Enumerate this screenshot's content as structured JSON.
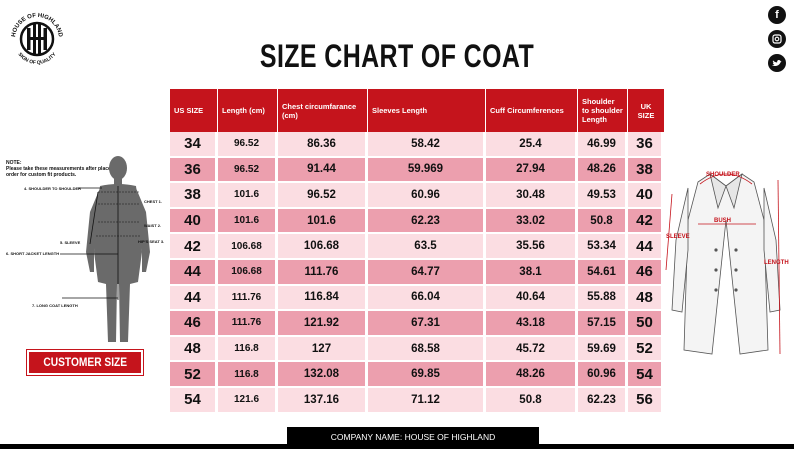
{
  "brand": {
    "logo_top_text": "HOUSE OF HIGHLAND",
    "logo_bottom_text": "SIGN OF QUALITY"
  },
  "social": {
    "icons": [
      "facebook-icon",
      "instagram-icon",
      "twitter-icon"
    ]
  },
  "title": "SIZE CHART OF  COAT",
  "table": {
    "headers": [
      "US SIZE",
      "Length (cm)",
      "Chest circumfarance (cm)",
      "Sleeves Length",
      "Cuff Circumferences",
      "Shoulder to shoulder Length",
      "UK SIZE"
    ],
    "rows": [
      [
        "34",
        "96.52",
        "86.36",
        "58.42",
        "25.4",
        "46.99",
        "36"
      ],
      [
        "36",
        "96.52",
        "91.44",
        "59.969",
        "27.94",
        "48.26",
        "38"
      ],
      [
        "38",
        "101.6",
        "96.52",
        "60.96",
        "30.48",
        "49.53",
        "40"
      ],
      [
        "40",
        "101.6",
        "101.6",
        "62.23",
        "33.02",
        "50.8",
        "42"
      ],
      [
        "42",
        "106.68",
        "106.68",
        "63.5",
        "35.56",
        "53.34",
        "44"
      ],
      [
        "44",
        "106.68",
        "111.76",
        "64.77",
        "38.1",
        "54.61",
        "46"
      ],
      [
        "44",
        "111.76",
        "116.84",
        "66.04",
        "40.64",
        "55.88",
        "48"
      ],
      [
        "46",
        "111.76",
        "121.92",
        "67.31",
        "43.18",
        "57.15",
        "50"
      ],
      [
        "48",
        "116.8",
        "127",
        "68.58",
        "45.72",
        "59.69",
        "52"
      ],
      [
        "52",
        "116.8",
        "132.08",
        "69.85",
        "48.26",
        "60.96",
        "54"
      ],
      [
        "54",
        "121.6",
        "137.16",
        "71.12",
        "50.8",
        "62.23",
        "56"
      ]
    ]
  },
  "customer": {
    "note_title": "NOTE:",
    "note_text": "Please take these measurements after place an order for custom fit products.",
    "labels": {
      "shoulder": "4.   SHOULDER TO SHOULDER",
      "chest": "CHEST  1.",
      "waist": "WAIST  2.",
      "hip": "HIP'S SEAT  3.",
      "sleeve": "5.  SLEEVE",
      "short_jacket": "6.  SHORT JACKET LENGTH",
      "long_coat": "7.  LONG COAT LENGTH"
    },
    "button": "CUSTOMER SIZE"
  },
  "coat": {
    "shoulder": "SHOULDER",
    "bush": "BUSH",
    "sleeve": "SLEEVE",
    "length": "LENGTH"
  },
  "footer": "COMPANY NAME: HOUSE OF HIGHLAND",
  "colors": {
    "header_red": "#c5141c",
    "row_light": "#fbdde2",
    "row_dark": "#ec9fae"
  }
}
